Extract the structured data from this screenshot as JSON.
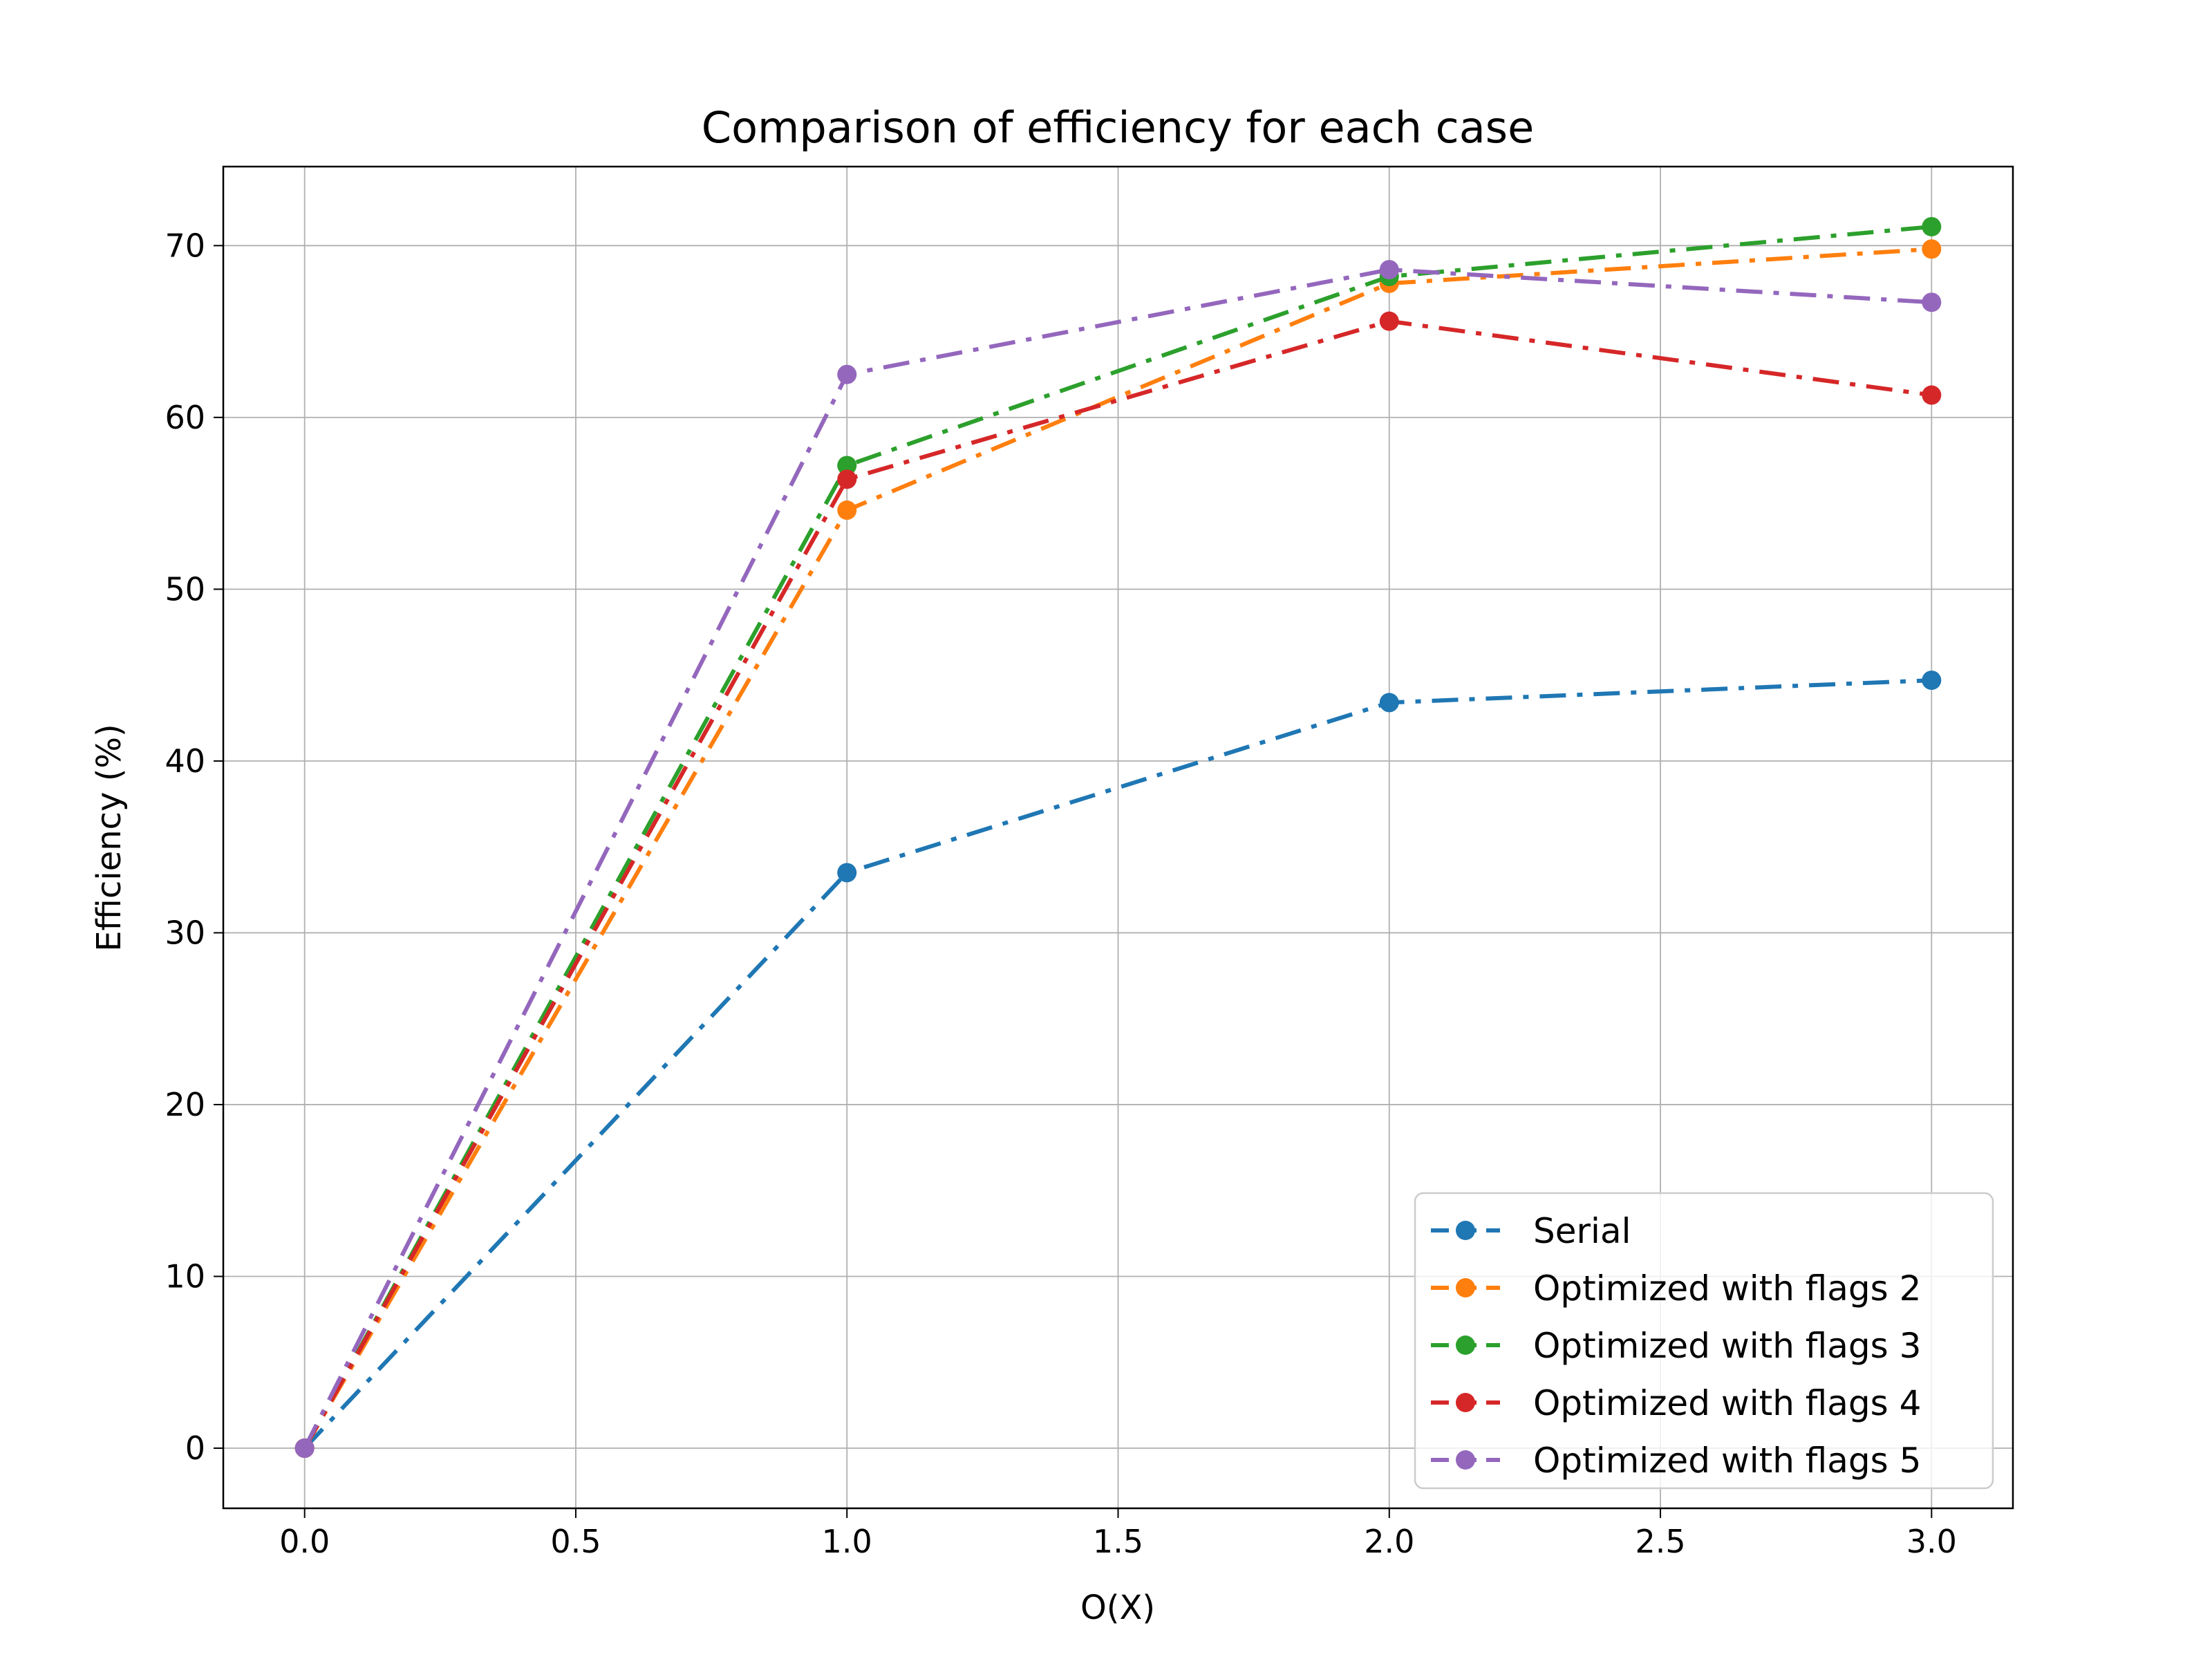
{
  "chart_data": {
    "type": "line",
    "title": "Comparison of efficiency for each case",
    "xlabel": "O(X)",
    "ylabel": "Efficiency (%)",
    "x": [
      0,
      1,
      2,
      3
    ],
    "xlim": [
      -0.15,
      3.15
    ],
    "ylim": [
      -3.5,
      74.6
    ],
    "xticks": [
      "0.0",
      "0.5",
      "1.0",
      "1.5",
      "2.0",
      "2.5",
      "3.0"
    ],
    "yticks": [
      "0",
      "10",
      "20",
      "30",
      "40",
      "50",
      "60",
      "70"
    ],
    "grid": true,
    "line_style": "dash-dot",
    "marker": "circle",
    "legend_position": "lower-right",
    "series": [
      {
        "name": "Serial",
        "color": "#1f77b4",
        "values": [
          0,
          33.5,
          43.4,
          44.7
        ]
      },
      {
        "name": "Optimized with flags 2",
        "color": "#ff7f0e",
        "values": [
          0,
          54.6,
          67.8,
          69.8
        ]
      },
      {
        "name": "Optimized with flags 3",
        "color": "#2ca02c",
        "values": [
          0,
          57.2,
          68.2,
          71.1
        ]
      },
      {
        "name": "Optimized with flags 4",
        "color": "#d62728",
        "values": [
          0,
          56.4,
          65.6,
          61.3
        ]
      },
      {
        "name": "Optimized with flags 5",
        "color": "#9467bd",
        "values": [
          0,
          62.5,
          68.6,
          66.7
        ]
      }
    ]
  }
}
